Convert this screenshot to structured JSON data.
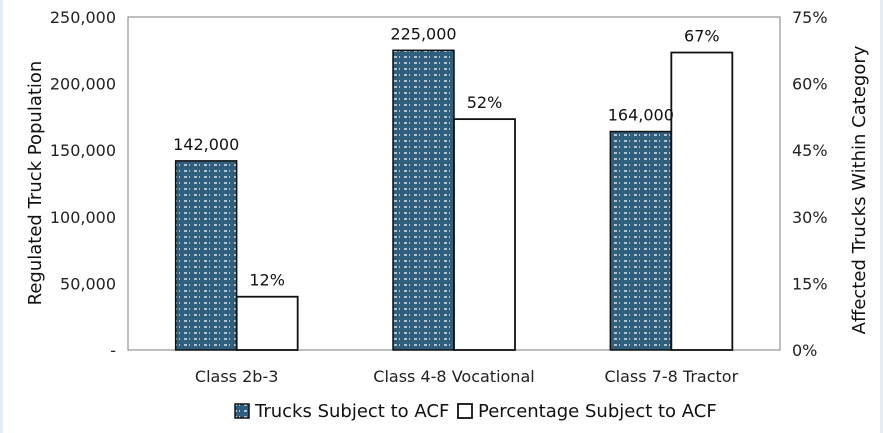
{
  "chart_data": {
    "type": "bar",
    "title": "",
    "categories": [
      "Class 2b-3",
      "Class 4-8 Vocational",
      "Class 7-8 Tractor"
    ],
    "series": [
      {
        "name": "Trucks Subject to ACF",
        "axis": "left",
        "values": [
          142000,
          225000,
          164000
        ],
        "labels": [
          "142,000",
          "225,000",
          "164,000"
        ],
        "color": "#2f5f7c",
        "pattern": "dashed-hatch"
      },
      {
        "name": "Percentage Subject to ACF",
        "axis": "right",
        "values": [
          12,
          52,
          67
        ],
        "labels": [
          "12%",
          "52%",
          "67%"
        ],
        "color": "#ffffff"
      }
    ],
    "ylabel": "Regulated Truck Population",
    "ylim": [
      0,
      250000
    ],
    "yticks": [
      "-",
      "50,000",
      "100,000",
      "150,000",
      "200,000",
      "250,000"
    ],
    "y2label": "Affected Trucks Within Category",
    "y2lim": [
      0,
      75
    ],
    "y2ticks": [
      "0%",
      "15%",
      "30%",
      "45%",
      "60%",
      "75%"
    ],
    "grid": false,
    "legend_position": "bottom"
  }
}
